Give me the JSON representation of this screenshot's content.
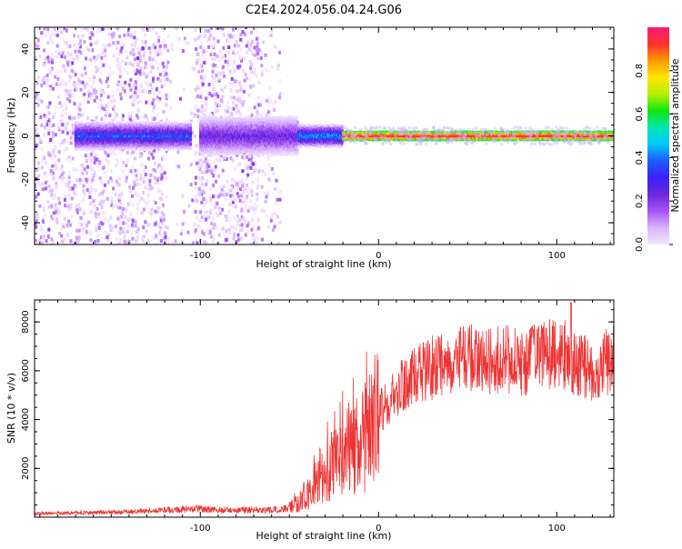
{
  "title": "C2E4.2024.056.04.24.G06",
  "colors": {
    "snr_line": "#ee3333",
    "colormap": [
      "#f2e6ff",
      "#d8b4fe",
      "#a855f7",
      "#6d28d9",
      "#3b20ff",
      "#1e5cff",
      "#00c8ff",
      "#00e6b0",
      "#10e610",
      "#b6f000",
      "#ffe600",
      "#ff9a00",
      "#ff3030",
      "#ff1a7a"
    ]
  },
  "chart_data": [
    {
      "type": "heatmap",
      "xlabel": "Height of straight line (km)",
      "ylabel": "Frequency (Hz)",
      "xlim": [
        -193,
        132
      ],
      "ylim": [
        -50,
        50
      ],
      "x_ticks": [
        -100,
        0,
        100
      ],
      "x_tick_labels": [
        "-100",
        "0",
        "100"
      ],
      "y_ticks": [
        -40,
        -20,
        0,
        20,
        40
      ],
      "y_tick_labels": [
        "-40",
        "-20",
        "0",
        "20",
        "40"
      ],
      "grid": false,
      "colorbar": {
        "label": "Normalized spectral amplitude",
        "range": [
          0,
          1
        ],
        "ticks": [
          0.0,
          0.2,
          0.4,
          0.6,
          0.8
        ],
        "tick_labels": [
          "0.0",
          "0.2",
          "0.4",
          "0.6",
          "0.8"
        ]
      },
      "ridge": {
        "center_frequency": 0,
        "segments": [
          {
            "x_start": -170,
            "x_end": -105,
            "half_width": 5,
            "peak_amplitude": 0.45
          },
          {
            "x_start": -100,
            "x_end": -45,
            "half_width": 7,
            "peak_amplitude": 0.3
          },
          {
            "x_start": -45,
            "x_end": -20,
            "half_width": 4,
            "peak_amplitude": 0.55
          },
          {
            "x_start": -20,
            "x_end": 132,
            "half_width": 1.5,
            "peak_amplitude": 0.95
          }
        ],
        "noise_region": [
          -193,
          -55
        ]
      }
    },
    {
      "type": "line",
      "xlabel": "Height of straight line (km)",
      "ylabel": "SNR (10 * v/v)",
      "xlim": [
        -193,
        132
      ],
      "ylim": [
        0,
        8900
      ],
      "x_ticks": [
        -100,
        0,
        100
      ],
      "x_tick_labels": [
        "-100",
        "0",
        "100"
      ],
      "y_ticks": [
        2000,
        4000,
        6000,
        8000
      ],
      "y_tick_labels": [
        "2000",
        "4000",
        "6000",
        "8000"
      ],
      "grid": false,
      "series": [
        {
          "points": [
            [
              -193,
              150
            ],
            [
              -180,
              170
            ],
            [
              -160,
              190
            ],
            [
              -140,
              230
            ],
            [
              -120,
              300
            ],
            [
              -100,
              330
            ],
            [
              -80,
              280
            ],
            [
              -60,
              300
            ],
            [
              -50,
              380
            ],
            [
              -45,
              550
            ],
            [
              -40,
              900
            ],
            [
              -35,
              1300
            ],
            [
              -30,
              1700
            ],
            [
              -25,
              2100
            ],
            [
              -20,
              2400
            ],
            [
              -15,
              2600
            ],
            [
              -10,
              3000
            ],
            [
              -5,
              3600
            ],
            [
              0,
              4200
            ],
            [
              5,
              4700
            ],
            [
              10,
              5100
            ],
            [
              20,
              5700
            ],
            [
              30,
              6100
            ],
            [
              40,
              6400
            ],
            [
              50,
              6500
            ],
            [
              60,
              6400
            ],
            [
              70,
              6500
            ],
            [
              80,
              6300
            ],
            [
              90,
              6600
            ],
            [
              100,
              6800
            ],
            [
              110,
              6400
            ],
            [
              120,
              6000
            ],
            [
              132,
              6500
            ]
          ],
          "peak": [
            108,
            8800
          ]
        }
      ]
    }
  ]
}
